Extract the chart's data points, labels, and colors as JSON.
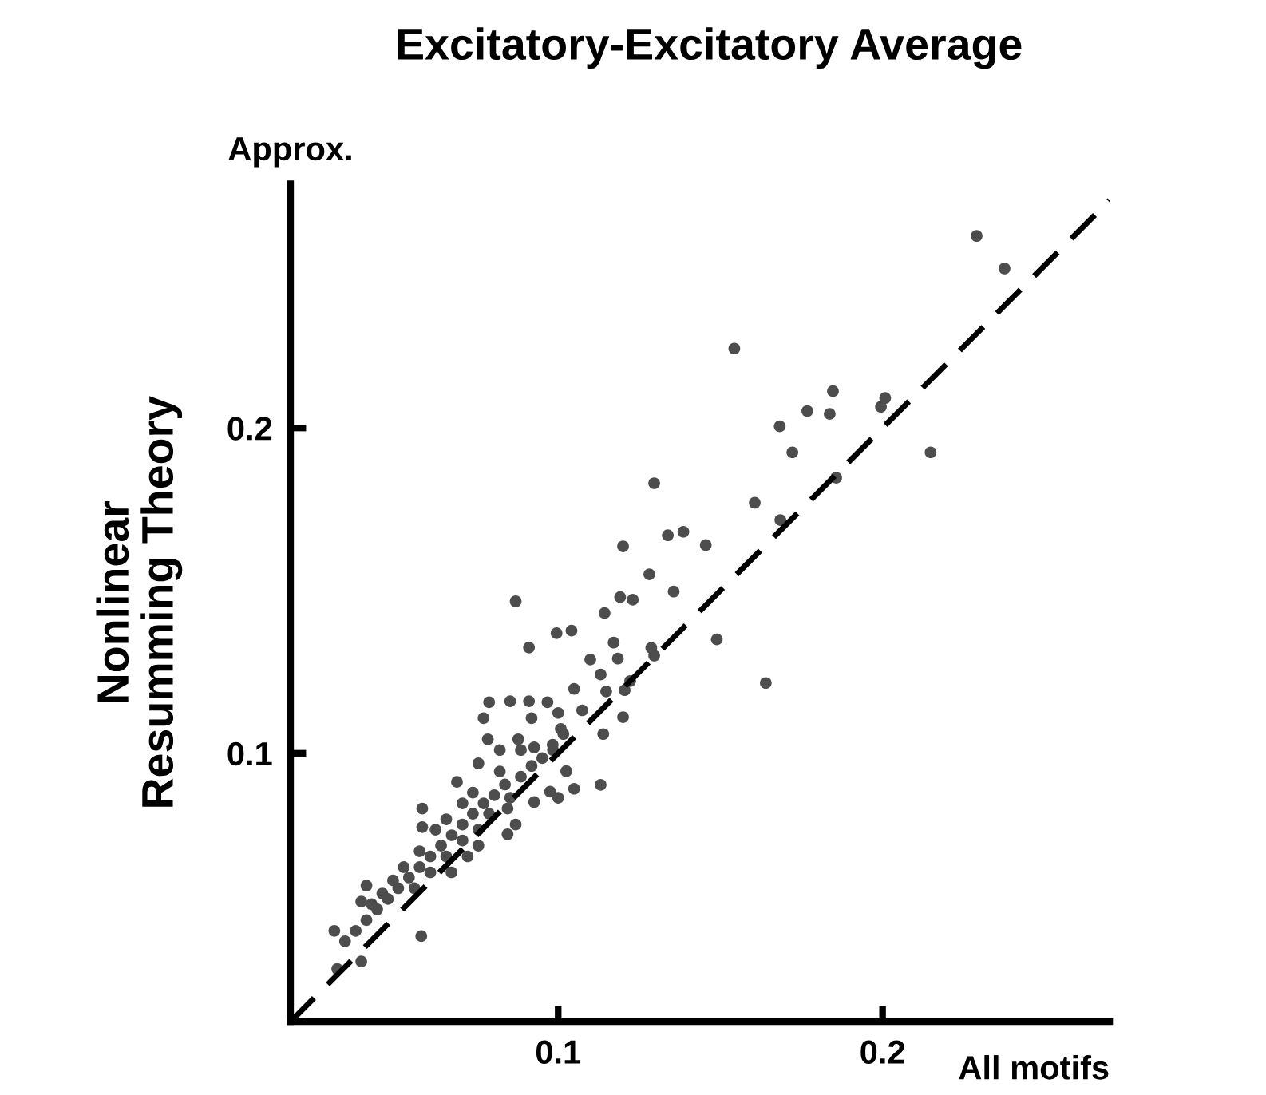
{
  "chart_data": {
    "type": "scatter",
    "title": "Excitatory-Excitatory Average",
    "xlabel": "All motifs",
    "ylabel": "Nonlinear\nResumming Theory",
    "annotations": [
      "Approx."
    ],
    "xlim": [
      0.0175,
      0.27
    ],
    "ylim": [
      0.0175,
      0.275
    ],
    "xticks": [
      0.1,
      0.2
    ],
    "yticks": [
      0.1,
      0.2
    ],
    "grid": false,
    "legend": false,
    "marker": "circle",
    "series": [
      {
        "color": "#4d4d4d",
        "x": [
          0.229,
          0.2376,
          0.1543,
          0.1847,
          0.1768,
          0.1837,
          0.2008,
          0.1995,
          0.1683,
          0.1722,
          0.2148,
          0.1857,
          0.1296,
          0.1606,
          0.1685,
          0.12,
          0.1338,
          0.1386,
          0.1455,
          0.1281,
          0.1356,
          0.0869,
          0.1191,
          0.123,
          0.1489,
          0.164,
          0.091,
          0.0995,
          0.1041,
          0.1143,
          0.1171,
          0.1287,
          0.1296,
          0.1099,
          0.1184,
          0.1131,
          0.1222,
          0.1205,
          0.1049,
          0.1148,
          0.0852,
          0.091,
          0.0967,
          0.0787,
          0.077,
          0.0918,
          0.1,
          0.1074,
          0.12,
          0.1139,
          0.1008,
          0.0783,
          0.0877,
          0.0926,
          0.082,
          0.0754,
          0.0984,
          0.1025,
          0.1131,
          0.1049,
          0.0975,
          0.1,
          0.0926,
          0.0688,
          0.0581,
          0.0844,
          0.0869,
          0.0844,
          0.0754,
          0.0721,
          0.0671,
          0.0581,
          0.0409,
          0.0393,
          0.031,
          0.0578,
          0.0393,
          0.0319,
          0.0343,
          0.0376,
          0.0409,
          0.0442,
          0.0475,
          0.0507,
          0.054,
          0.0573,
          0.0606,
          0.0639,
          0.0672,
          0.0705,
          0.0737,
          0.077,
          0.0803,
          0.0836,
          0.0655,
          0.0622,
          0.0705,
          0.0737,
          0.0573,
          0.0524,
          0.0491,
          0.0458,
          0.0425,
          0.0557,
          0.0606,
          0.0655,
          0.0705,
          0.0754,
          0.0787,
          0.0852,
          0.0885,
          0.0918,
          0.0951,
          0.0983,
          0.1016,
          0.0885,
          0.082
        ],
        "values": [
          0.259,
          0.249,
          0.2244,
          0.2113,
          0.2052,
          0.2043,
          0.2092,
          0.2065,
          0.2005,
          0.1925,
          0.1925,
          0.1847,
          0.183,
          0.177,
          0.1717,
          0.1636,
          0.167,
          0.1681,
          0.164,
          0.155,
          0.1497,
          0.1467,
          0.148,
          0.1472,
          0.135,
          0.1216,
          0.1325,
          0.1369,
          0.1377,
          0.1431,
          0.134,
          0.1324,
          0.13,
          0.1288,
          0.1291,
          0.1242,
          0.1222,
          0.1194,
          0.1198,
          0.119,
          0.116,
          0.116,
          0.1157,
          0.1157,
          0.1108,
          0.1108,
          0.1124,
          0.1132,
          0.1111,
          0.1059,
          0.1075,
          0.1043,
          0.1043,
          0.1018,
          0.101,
          0.0969,
          0.101,
          0.0945,
          0.0903,
          0.0891,
          0.0882,
          0.0863,
          0.085,
          0.0912,
          0.083,
          0.083,
          0.0781,
          0.0751,
          0.0716,
          0.0683,
          0.0634,
          0.0773,
          0.0593,
          0.0544,
          0.0454,
          0.0438,
          0.036,
          0.0337,
          0.0422,
          0.0454,
          0.0487,
          0.052,
          0.0552,
          0.0585,
          0.0618,
          0.065,
          0.0683,
          0.0716,
          0.0748,
          0.0781,
          0.0814,
          0.0846,
          0.0871,
          0.0904,
          0.0797,
          0.0765,
          0.0846,
          0.0879,
          0.0699,
          0.065,
          0.0609,
          0.0569,
          0.0536,
          0.0585,
          0.0634,
          0.0683,
          0.0732,
          0.0765,
          0.0814,
          0.0863,
          0.0928,
          0.0961,
          0.0985,
          0.1026,
          0.1059,
          0.101,
          0.0944
        ]
      },
      {
        "type": "line",
        "color": "#000000",
        "line_style": "dashed",
        "marker": "none",
        "x": [
          0.0175,
          0.27
        ],
        "values": [
          0.0175,
          0.27
        ]
      }
    ]
  }
}
